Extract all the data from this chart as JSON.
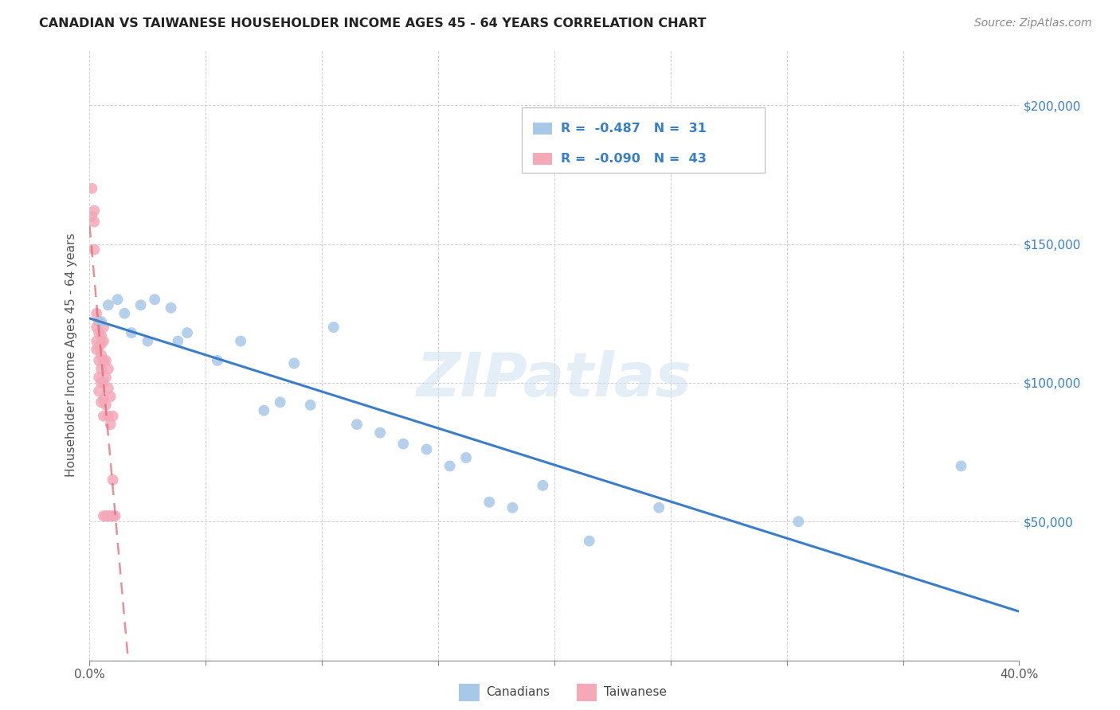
{
  "title": "CANADIAN VS TAIWANESE HOUSEHOLDER INCOME AGES 45 - 64 YEARS CORRELATION CHART",
  "source": "Source: ZipAtlas.com",
  "ylabel_text": "Householder Income Ages 45 - 64 years",
  "xlim": [
    0.0,
    0.4
  ],
  "ylim": [
    0,
    220000
  ],
  "xticks": [
    0.0,
    0.05,
    0.1,
    0.15,
    0.2,
    0.25,
    0.3,
    0.35,
    0.4
  ],
  "yticks": [
    0,
    50000,
    100000,
    150000,
    200000
  ],
  "canadians_color": "#a8c8e8",
  "taiwanese_color": "#f4a8b8",
  "canadian_line_color": "#3a7ec8",
  "taiwanese_line_color": "#e06070",
  "canadian_R": -0.487,
  "canadian_N": 31,
  "taiwanese_R": -0.09,
  "taiwanese_N": 43,
  "watermark": "ZIPatlas",
  "canadians_x": [
    0.005,
    0.008,
    0.012,
    0.015,
    0.018,
    0.022,
    0.025,
    0.028,
    0.035,
    0.038,
    0.042,
    0.055,
    0.065,
    0.075,
    0.082,
    0.088,
    0.095,
    0.105,
    0.115,
    0.125,
    0.135,
    0.145,
    0.155,
    0.162,
    0.172,
    0.182,
    0.195,
    0.215,
    0.245,
    0.305,
    0.375
  ],
  "canadians_y": [
    122000,
    128000,
    130000,
    125000,
    118000,
    128000,
    115000,
    130000,
    127000,
    115000,
    118000,
    108000,
    115000,
    90000,
    93000,
    107000,
    92000,
    120000,
    85000,
    82000,
    78000,
    76000,
    70000,
    73000,
    57000,
    55000,
    63000,
    43000,
    55000,
    50000,
    70000
  ],
  "taiwanese_x": [
    0.001,
    0.001,
    0.002,
    0.002,
    0.002,
    0.003,
    0.003,
    0.003,
    0.003,
    0.004,
    0.004,
    0.004,
    0.004,
    0.004,
    0.004,
    0.005,
    0.005,
    0.005,
    0.005,
    0.005,
    0.005,
    0.006,
    0.006,
    0.006,
    0.006,
    0.006,
    0.006,
    0.006,
    0.007,
    0.007,
    0.007,
    0.007,
    0.008,
    0.008,
    0.008,
    0.008,
    0.009,
    0.009,
    0.009,
    0.01,
    0.01,
    0.01,
    0.011
  ],
  "taiwanese_y": [
    170000,
    160000,
    162000,
    158000,
    148000,
    125000,
    120000,
    115000,
    112000,
    122000,
    118000,
    113000,
    108000,
    102000,
    97000,
    117000,
    114000,
    110000,
    105000,
    100000,
    93000,
    120000,
    115000,
    108000,
    100000,
    94000,
    88000,
    52000,
    108000,
    102000,
    92000,
    52000,
    105000,
    98000,
    88000,
    52000,
    95000,
    85000,
    52000,
    88000,
    52000,
    65000,
    52000
  ]
}
